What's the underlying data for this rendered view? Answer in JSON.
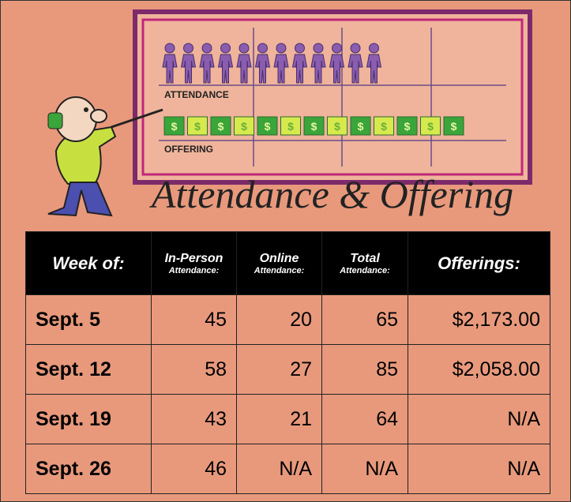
{
  "banner": {
    "title": "Attendance & Offering",
    "chart_labels": [
      "ATTENDANCE",
      "OFFERING"
    ],
    "currency_icon": "$"
  },
  "table": {
    "columns": [
      {
        "title": "Week of:"
      },
      {
        "title": "In-Person",
        "subtitle": "Attendance:"
      },
      {
        "title": "Online",
        "subtitle": "Attendance:"
      },
      {
        "title": "Total",
        "subtitle": "Attendance:"
      },
      {
        "title": "Offerings:"
      }
    ],
    "rows": [
      [
        "Sept. 5",
        "45",
        "20",
        "65",
        "$2,173.00"
      ],
      [
        "Sept. 12",
        "58",
        "27",
        "85",
        "$2,058.00"
      ],
      [
        "Sept. 19",
        "43",
        "21",
        "64",
        "N/A"
      ],
      [
        "Sept. 26",
        "46",
        "N/A",
        "N/A",
        "N/A"
      ]
    ]
  }
}
